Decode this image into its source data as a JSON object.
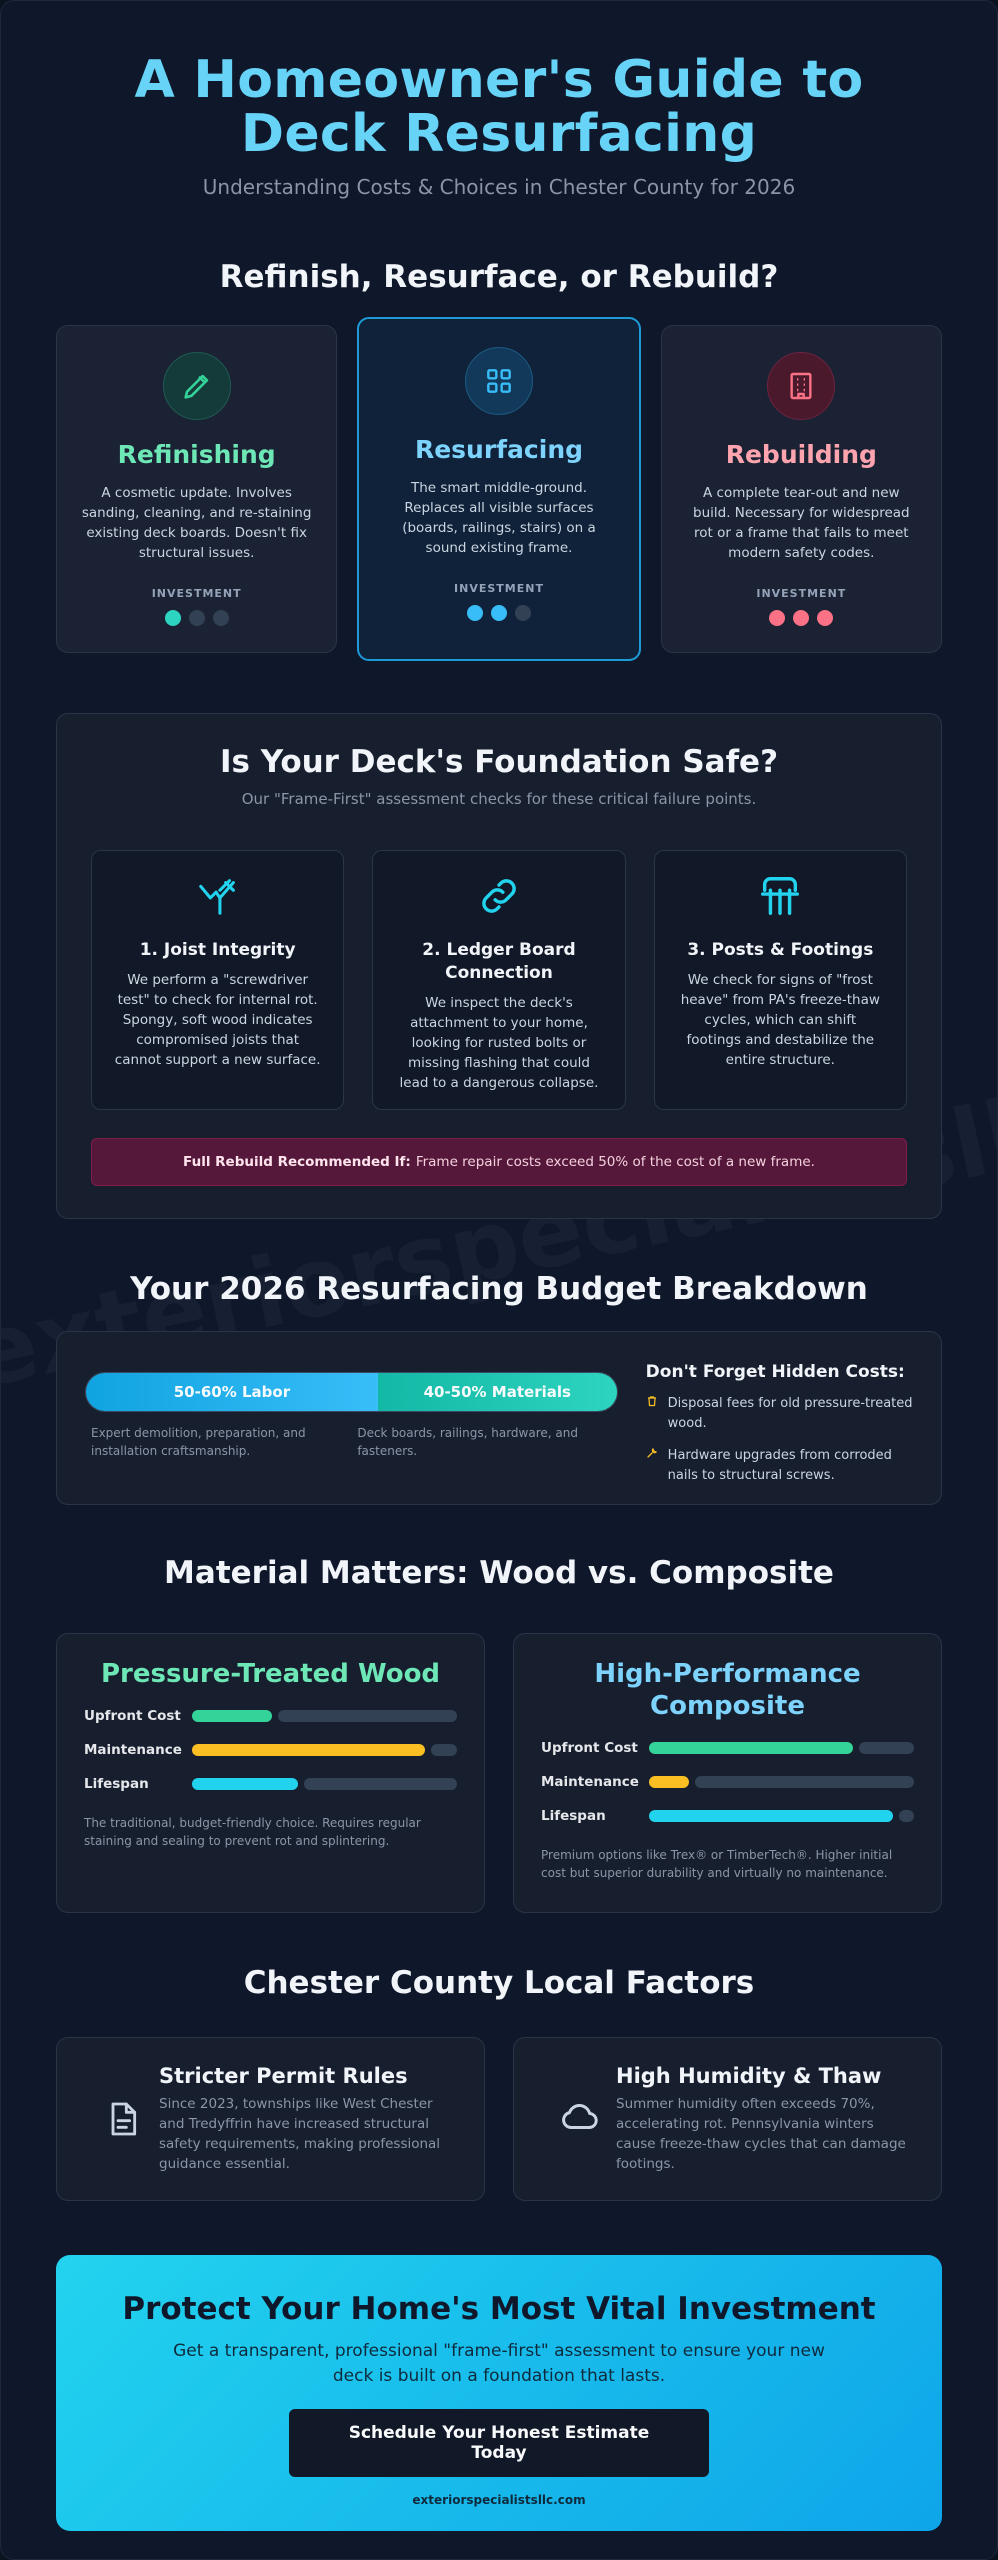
{
  "hero": {
    "title": "A Homeowner's Guide to Deck Resurfacing",
    "subtitle": "Understanding Costs & Choices in Chester County for 2026"
  },
  "options": {
    "title": "Refinish, Resurface, or Rebuild?",
    "items": [
      {
        "name": "Refinishing",
        "desc": "A cosmetic update. Involves sanding, cleaning, and re-staining existing deck boards. Doesn't fix structural issues.",
        "investment_label": "INVESTMENT",
        "investment_level": 1,
        "color": "#34d399",
        "icon": "pencil-icon"
      },
      {
        "name": "Resurfacing",
        "desc": "The smart middle-ground. Replaces all visible surfaces (boards, railings, stairs) on a sound existing frame.",
        "investment_label": "INVESTMENT",
        "investment_level": 2,
        "color": "#38bdf8",
        "icon": "grid-icon"
      },
      {
        "name": "Rebuilding",
        "desc": "A complete tear-out and new build. Necessary for widespread rot or a frame that fails to meet modern safety codes.",
        "investment_label": "INVESTMENT",
        "investment_level": 3,
        "color": "#fb7185",
        "icon": "building-icon"
      }
    ]
  },
  "foundation": {
    "title": "Is Your Deck's Foundation Safe?",
    "subtitle": "Our \"Frame-First\" assessment checks for these critical failure points.",
    "checks": [
      {
        "title": "1. Joist Integrity",
        "desc": "We perform a \"screwdriver test\" to check for internal rot. Spongy, soft wood indicates compromised joists that cannot support a new surface.",
        "icon": "tools-icon"
      },
      {
        "title": "2. Ledger Board Connection",
        "desc": "We inspect the deck's attachment to your home, looking for rusted bolts or missing flashing that could lead to a dangerous collapse.",
        "icon": "link-icon"
      },
      {
        "title": "3. Posts & Footings",
        "desc": "We check for signs of \"frost heave\" from PA's freeze-thaw cycles, which can shift footings and destabilize the entire structure.",
        "icon": "posts-icon"
      }
    ],
    "alert_bold": "Full Rebuild Recommended If:",
    "alert_text": "Frame repair costs exceed 50% of the cost of a new frame."
  },
  "budget": {
    "title": "Your 2026 Resurfacing Budget Breakdown",
    "labor_label": "50-60% Labor",
    "materials_label": "40-50% Materials",
    "labor_note": "Expert demolition, preparation, and installation craftsmanship.",
    "materials_note": "Deck boards, railings, hardware, and fasteners.",
    "hidden_title": "Don't Forget Hidden Costs:",
    "hidden_items": [
      {
        "text": "Disposal fees for old pressure-treated wood.",
        "icon": "trash-icon"
      },
      {
        "text": "Hardware upgrades from corroded nails to structural screws.",
        "icon": "wrench-icon"
      }
    ]
  },
  "materials": {
    "title": "Material Matters: Wood vs. Composite",
    "cards": [
      {
        "name": "Pressure-Treated Wood",
        "color": "#6ee7b7",
        "metrics": [
          {
            "label": "Upfront Cost",
            "level": 0.3,
            "color": "#34d399"
          },
          {
            "label": "Maintenance",
            "level": 0.88,
            "color": "#fbbf24"
          },
          {
            "label": "Lifespan",
            "level": 0.4,
            "color": "#22d3ee"
          }
        ],
        "note": "The traditional, budget-friendly choice. Requires regular staining and sealing to prevent rot and splintering."
      },
      {
        "name": "High-Performance Composite",
        "color": "#7dd3fc",
        "metrics": [
          {
            "label": "Upfront Cost",
            "level": 0.77,
            "color": "#34d399"
          },
          {
            "label": "Maintenance",
            "level": 0.15,
            "color": "#fbbf24"
          },
          {
            "label": "Lifespan",
            "level": 0.92,
            "color": "#22d3ee"
          }
        ],
        "note": "Premium options like Trex® or TimberTech®. Higher initial cost but superior durability and virtually no maintenance."
      }
    ]
  },
  "local": {
    "title": "Chester County Local Factors",
    "items": [
      {
        "title": "Stricter Permit Rules",
        "desc": "Since 2023, townships like West Chester and Tredyffrin have increased structural safety requirements, making professional guidance essential.",
        "icon": "document-icon"
      },
      {
        "title": "High Humidity & Thaw",
        "desc": "Summer humidity often exceeds 70%, accelerating rot. Pennsylvania winters cause freeze-thaw cycles that can damage footings.",
        "icon": "cloud-icon"
      }
    ]
  },
  "cta": {
    "title": "Protect Your Home's Most Vital Investment",
    "text": "Get a transparent, professional \"frame-first\" assessment to ensure your new deck is built on a foundation that lasts.",
    "button": "Schedule Your Honest Estimate Today",
    "site": "exteriorspecialistsllc.com"
  },
  "watermark": "exteriorspecialistsllc.com"
}
